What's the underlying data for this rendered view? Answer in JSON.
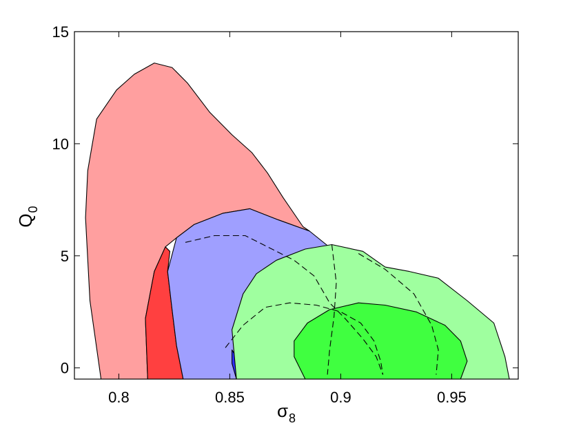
{
  "chart_data": {
    "type": "contour",
    "xlabel": "σ",
    "xlabel_subscript": "8",
    "ylabel": "Q",
    "ylabel_subscript": "0",
    "xlim": [
      0.78,
      0.98
    ],
    "ylim": [
      -0.5,
      15
    ],
    "xticks": [
      0.8,
      0.85,
      0.9,
      0.95
    ],
    "xtick_labels": [
      "0.8",
      "0.85",
      "0.9",
      "0.95"
    ],
    "yticks": [
      0,
      5,
      10,
      15
    ],
    "ytick_labels": [
      "0",
      "5",
      "10",
      "15"
    ],
    "grid": false,
    "legend": "none",
    "colors": {
      "red_outer": "#ff9f9f",
      "red_inner": "#ff4040",
      "blue_outer": "#9f9fff",
      "blue_inner": "#3030ff",
      "green_outer": "#9fff9f",
      "green_inner": "#40ff40",
      "outline": "#000000"
    },
    "regions": [
      {
        "color": "red_outer",
        "points": [
          [
            0.792,
            -0.5
          ],
          [
            0.787,
            3
          ],
          [
            0.785,
            6.7
          ],
          [
            0.786,
            8.8
          ],
          [
            0.79,
            11.1
          ],
          [
            0.799,
            12.4
          ],
          [
            0.807,
            13.1
          ],
          [
            0.816,
            13.6
          ],
          [
            0.824,
            13.4
          ],
          [
            0.831,
            12.7
          ],
          [
            0.841,
            11.4
          ],
          [
            0.851,
            10.4
          ],
          [
            0.86,
            9.6
          ],
          [
            0.867,
            8.7
          ],
          [
            0.874,
            7.6
          ],
          [
            0.883,
            6.3
          ],
          [
            0.886,
            6.1
          ],
          [
            0.872,
            6.6
          ],
          [
            0.859,
            7.1
          ],
          [
            0.847,
            6.9
          ],
          [
            0.834,
            6.4
          ],
          [
            0.826,
            5.8
          ],
          [
            0.821,
            5.4
          ],
          [
            0.816,
            4.3
          ],
          [
            0.812,
            2.2
          ],
          [
            0.813,
            -0.5
          ]
        ]
      },
      {
        "color": "red_inner",
        "points": [
          [
            0.813,
            -0.5
          ],
          [
            0.812,
            2.2
          ],
          [
            0.816,
            4.3
          ],
          [
            0.821,
            5.4
          ],
          [
            0.823,
            5.2
          ],
          [
            0.822,
            4.3
          ],
          [
            0.824,
            2.6
          ],
          [
            0.826,
            1.0
          ],
          [
            0.829,
            -0.5
          ]
        ]
      },
      {
        "color": "blue_outer",
        "points": [
          [
            0.829,
            -0.5
          ],
          [
            0.826,
            1.0
          ],
          [
            0.824,
            2.6
          ],
          [
            0.822,
            4.3
          ],
          [
            0.826,
            5.8
          ],
          [
            0.834,
            6.4
          ],
          [
            0.847,
            6.9
          ],
          [
            0.859,
            7.1
          ],
          [
            0.872,
            6.6
          ],
          [
            0.886,
            6.1
          ],
          [
            0.896,
            5.3
          ],
          [
            0.901,
            4.6
          ],
          [
            0.893,
            3.2
          ],
          [
            0.884,
            2.5
          ],
          [
            0.874,
            2.0
          ],
          [
            0.864,
            1.3
          ],
          [
            0.857,
            0.5
          ],
          [
            0.853,
            -0.5
          ]
        ]
      },
      {
        "color": "blue_inner",
        "points": [
          [
            0.853,
            -0.5
          ],
          [
            0.851,
            0.2
          ],
          [
            0.851,
            0.8
          ],
          [
            0.856,
            0.0
          ],
          [
            0.857,
            -0.5
          ]
        ]
      },
      {
        "color": "green_outer",
        "points": [
          [
            0.853,
            -0.5
          ],
          [
            0.851,
            1.7
          ],
          [
            0.856,
            3.3
          ],
          [
            0.862,
            4.2
          ],
          [
            0.871,
            4.8
          ],
          [
            0.884,
            5.3
          ],
          [
            0.896,
            5.5
          ],
          [
            0.91,
            5.2
          ],
          [
            0.92,
            4.5
          ],
          [
            0.931,
            4.3
          ],
          [
            0.944,
            4.0
          ],
          [
            0.957,
            3.0
          ],
          [
            0.969,
            2.0
          ],
          [
            0.974,
            0.5
          ],
          [
            0.976,
            -0.5
          ]
        ]
      },
      {
        "color": "green_inner",
        "points": [
          [
            0.884,
            -0.5
          ],
          [
            0.879,
            0.5
          ],
          [
            0.879,
            1.2
          ],
          [
            0.885,
            2.0
          ],
          [
            0.895,
            2.6
          ],
          [
            0.908,
            2.9
          ],
          [
            0.92,
            2.8
          ],
          [
            0.934,
            2.5
          ],
          [
            0.947,
            1.9
          ],
          [
            0.954,
            1.2
          ],
          [
            0.957,
            0.3
          ],
          [
            0.954,
            -0.5
          ]
        ]
      }
    ],
    "dashed_contours": [
      {
        "name": "outer",
        "points": [
          [
            0.83,
            5.6
          ],
          [
            0.843,
            5.9
          ],
          [
            0.857,
            5.9
          ],
          [
            0.869,
            5.3
          ],
          [
            0.879,
            4.8
          ],
          [
            0.888,
            4.1
          ],
          [
            0.895,
            2.9
          ],
          [
            0.902,
            2.2
          ],
          [
            0.91,
            1.3
          ],
          [
            0.916,
            0.5
          ],
          [
            0.919,
            -0.3
          ]
        ]
      },
      {
        "name": "inner",
        "points": [
          [
            0.848,
            0.9
          ],
          [
            0.856,
            1.9
          ],
          [
            0.866,
            2.7
          ],
          [
            0.877,
            2.9
          ],
          [
            0.889,
            2.8
          ],
          [
            0.9,
            2.5
          ],
          [
            0.909,
            2.0
          ],
          [
            0.915,
            1.2
          ],
          [
            0.918,
            0.3
          ],
          [
            0.919,
            -0.3
          ]
        ]
      },
      {
        "name": "green-boundary-1",
        "points": [
          [
            0.896,
            5.5
          ],
          [
            0.898,
            3.8
          ],
          [
            0.897,
            2.3
          ],
          [
            0.895,
            0.8
          ],
          [
            0.894,
            -0.3
          ]
        ]
      },
      {
        "name": "green-boundary-2",
        "points": [
          [
            0.908,
            5.1
          ],
          [
            0.92,
            4.4
          ],
          [
            0.933,
            3.3
          ],
          [
            0.941,
            1.9
          ],
          [
            0.944,
            0.8
          ],
          [
            0.943,
            -0.3
          ]
        ]
      }
    ]
  }
}
